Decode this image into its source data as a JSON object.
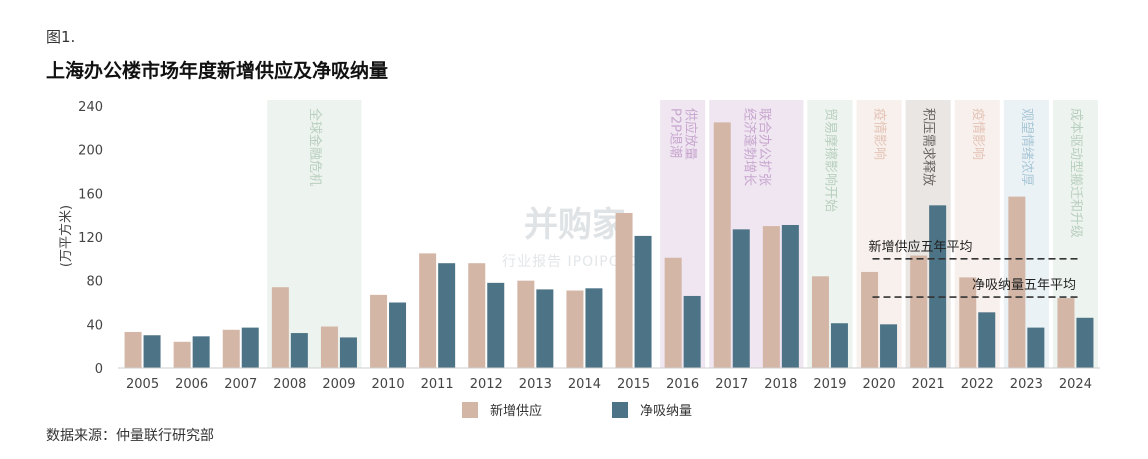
{
  "header": {
    "figure_label": "图1.",
    "title": "上海办公楼市场年度新增供应及净吸纳量"
  },
  "footer": {
    "source": "数据来源：仲量联行研究部"
  },
  "watermark": {
    "main": "并购家",
    "sub": "行业报告 IPOIPO.CN"
  },
  "colors": {
    "supply": "#d3b6a6",
    "absorption": "#4c7386",
    "band_green": "#edf3ee",
    "band_purple": "#efe6f1",
    "band_pink": "#f8f0ec",
    "band_gray": "#e9e6e4",
    "band_blue": "#eaf2f5"
  },
  "chart_data": {
    "type": "bar",
    "title": "上海办公楼市场年度新增供应及净吸纳量",
    "ylabel": "(万平方米)",
    "ylim": [
      0,
      240
    ],
    "yticks": [
      0,
      40,
      80,
      120,
      160,
      200,
      240
    ],
    "categories": [
      "2005",
      "2006",
      "2007",
      "2008",
      "2009",
      "2010",
      "2011",
      "2012",
      "2013",
      "2014",
      "2015",
      "2016",
      "2017",
      "2018",
      "2019",
      "2020",
      "2021",
      "2022",
      "2023",
      "2024"
    ],
    "series": [
      {
        "name": "新增供应",
        "color": "#d3b6a6",
        "values": [
          33,
          24,
          35,
          74,
          38,
          67,
          105,
          96,
          80,
          71,
          142,
          101,
          225,
          130,
          84,
          88,
          103,
          83,
          157,
          64
        ]
      },
      {
        "name": "净吸纳量",
        "color": "#4c7386",
        "values": [
          30,
          29,
          37,
          32,
          28,
          60,
          96,
          78,
          72,
          73,
          121,
          66,
          127,
          131,
          41,
          40,
          149,
          51,
          37,
          46
        ]
      }
    ],
    "reference_lines": [
      {
        "label": "新增供应五年平均",
        "value": 100
      },
      {
        "label": "净吸纳量五年平均",
        "value": 65
      }
    ],
    "annotations": [
      {
        "text": "全球金融危机",
        "from": "2008",
        "to": "2009",
        "band": "band_green",
        "color": "#b8cfbe"
      },
      {
        "text": "P2P退潮",
        "from": "2016",
        "to": "2016",
        "band": "band_purple",
        "color": "#c8a6cf"
      },
      {
        "text": "供应放量",
        "from": "2016",
        "to": "2016",
        "band": "band_purple",
        "color": "#c8a6cf"
      },
      {
        "text": "经济蓬勃增长",
        "from": "2017",
        "to": "2018",
        "band": "band_purple",
        "color": "#c8a6cf"
      },
      {
        "text": "联合办公扩张",
        "from": "2017",
        "to": "2018",
        "band": "band_purple",
        "color": "#c8a6cf"
      },
      {
        "text": "贸易摩擦影响开始",
        "from": "2019",
        "to": "2019",
        "band": "band_green",
        "color": "#b8cfbe"
      },
      {
        "text": "疫情影响",
        "from": "2020",
        "to": "2020",
        "band": "band_pink",
        "color": "#e3c3b6"
      },
      {
        "text": "积压需求释放",
        "from": "2021",
        "to": "2021",
        "band": "band_gray",
        "color": "#6a6562"
      },
      {
        "text": "疫情影响",
        "from": "2022",
        "to": "2022",
        "band": "band_pink",
        "color": "#e3c3b6"
      },
      {
        "text": "观望情绪浓厚",
        "from": "2023",
        "to": "2023",
        "band": "band_blue",
        "color": "#a9c7d6"
      },
      {
        "text": "成本驱动型搬迁和升级",
        "from": "2024",
        "to": "2024",
        "band": "band_green",
        "color": "#b8cfbe"
      }
    ],
    "legend": {
      "position": "bottom-center",
      "entries": [
        "新增供应",
        "净吸纳量"
      ]
    },
    "grid": false
  }
}
